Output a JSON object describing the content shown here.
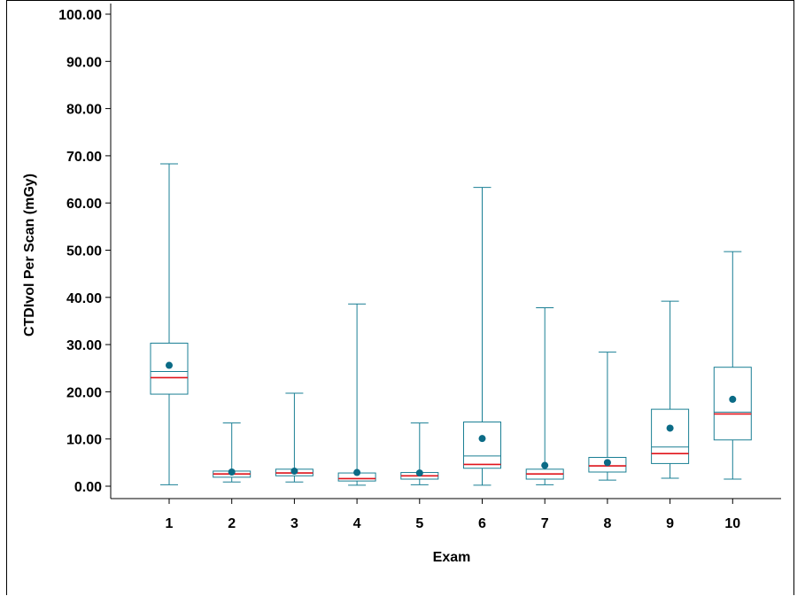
{
  "chart_data": {
    "type": "boxplot",
    "xlabel": "Exam",
    "ylabel": "CTDIvol Per Scan (mGy)",
    "ylim": [
      0,
      100
    ],
    "yticks": [
      "0.00",
      "10.00",
      "20.00",
      "30.00",
      "40.00",
      "50.00",
      "60.00",
      "70.00",
      "80.00",
      "90.00",
      "100.00"
    ],
    "categories": [
      "1",
      "2",
      "3",
      "4",
      "5",
      "6",
      "7",
      "8",
      "9",
      "10"
    ],
    "boxes": [
      {
        "category": "1",
        "min": 0.3,
        "q1": 19.5,
        "median": 23.0,
        "mean": 25.6,
        "q3": 30.3,
        "max": 68.3,
        "inner": 24.3
      },
      {
        "category": "2",
        "min": 0.9,
        "q1": 1.9,
        "median": 2.6,
        "mean": 3.0,
        "q3": 3.2,
        "max": 13.4,
        "inner": 2.6
      },
      {
        "category": "3",
        "min": 0.9,
        "q1": 2.2,
        "median": 2.8,
        "mean": 3.2,
        "q3": 3.6,
        "max": 19.7,
        "inner": 2.8
      },
      {
        "category": "4",
        "min": 0.2,
        "q1": 1.1,
        "median": 1.6,
        "mean": 2.9,
        "q3": 2.8,
        "max": 38.6,
        "inner": 1.6
      },
      {
        "category": "5",
        "min": 0.3,
        "q1": 1.5,
        "median": 2.2,
        "mean": 2.8,
        "q3": 2.9,
        "max": 13.4,
        "inner": 2.2
      },
      {
        "category": "6",
        "min": 0.2,
        "q1": 3.8,
        "median": 4.6,
        "mean": 10.1,
        "q3": 13.6,
        "max": 63.3,
        "inner": 6.4
      },
      {
        "category": "7",
        "min": 0.3,
        "q1": 1.5,
        "median": 2.6,
        "mean": 4.4,
        "q3": 3.6,
        "max": 37.8,
        "inner": 2.6
      },
      {
        "category": "8",
        "min": 1.3,
        "q1": 3.0,
        "median": 4.3,
        "mean": 5.0,
        "q3": 6.1,
        "max": 28.4,
        "inner": 4.3
      },
      {
        "category": "9",
        "min": 1.7,
        "q1": 4.8,
        "median": 6.9,
        "mean": 12.3,
        "q3": 16.3,
        "max": 39.2,
        "inner": 8.3
      },
      {
        "category": "10",
        "min": 1.5,
        "q1": 9.8,
        "median": 15.3,
        "mean": 18.4,
        "q3": 25.2,
        "max": 49.7,
        "inner": 15.7
      }
    ],
    "colors": {
      "box": "#1a7f94",
      "median": "#e0141b",
      "mean": "#0b6b86",
      "axis": "#000000"
    },
    "grid": false,
    "legend": "none"
  }
}
